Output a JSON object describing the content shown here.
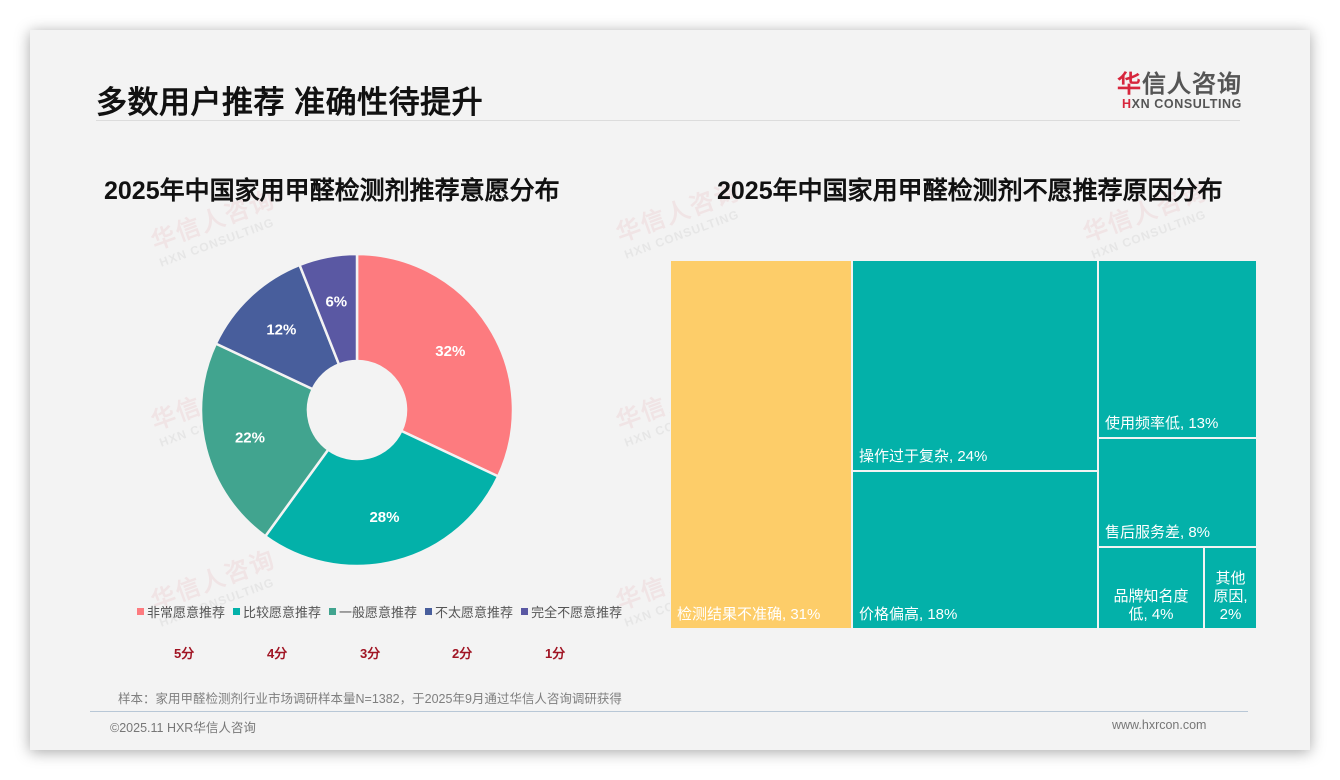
{
  "page": {
    "title": "多数用户推荐 准确性待提升",
    "logo": {
      "cn_red": "华",
      "cn_rest": "信人咨询",
      "en_red": "H",
      "en_rest": "XN CONSULTING"
    },
    "watermark": {
      "cn": "华信人咨询",
      "en": "HXN CONSULTING"
    },
    "note": "样本：家用甲醛检测剂行业市场调研样本量N=1382，于2025年9月通过华信人咨询调研获得",
    "copyright": "©2025.11 HXR华信人咨询",
    "website": "www.hxrcon.com"
  },
  "chart_data": [
    {
      "type": "pie",
      "variant": "donut",
      "title": "2025年中国家用甲醛检测剂推荐意愿分布",
      "categories": [
        "非常愿意推荐",
        "比较愿意推荐",
        "一般愿意推荐",
        "不太愿意推荐",
        "完全不愿意推荐"
      ],
      "values": [
        32,
        28,
        22,
        12,
        6
      ],
      "labels": [
        "32%",
        "28%",
        "22%",
        "12%",
        "6%"
      ],
      "colors": [
        "#fd7b7f",
        "#03b1a9",
        "#41a48f",
        "#485e9c",
        "#5a58a3"
      ],
      "scores": [
        "5分",
        "4分",
        "3分",
        "2分",
        "1分"
      ],
      "legend_position": "bottom"
    },
    {
      "type": "treemap",
      "title": "2025年中国家用甲醛检测剂不愿推荐原因分布",
      "categories": [
        "检测结果不准确",
        "操作过于复杂",
        "价格偏高",
        "使用频率低",
        "售后服务差",
        "品牌知名度低",
        "其他原因"
      ],
      "values": [
        31,
        24,
        18,
        13,
        8,
        4,
        2
      ],
      "labels": [
        "检测结果不准确, 31%",
        "操作过于复杂, 24%",
        "价格偏高, 18%",
        "使用频率低, 13%",
        "售后服务差, 8%",
        "品牌知名度低, 4%",
        "其他原因, 2%"
      ],
      "colors": [
        "#fdcd69",
        "#03b1a9",
        "#03b1a9",
        "#03b1a9",
        "#03b1a9",
        "#03b1a9",
        "#03b1a9"
      ]
    }
  ]
}
